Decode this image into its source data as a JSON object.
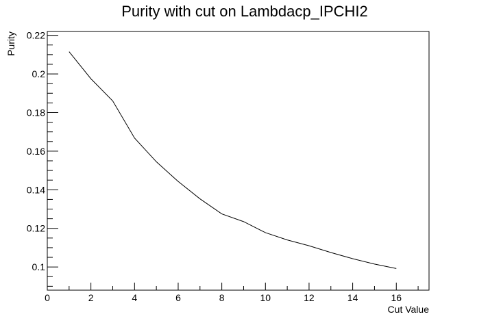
{
  "chart_data": {
    "type": "line",
    "title": "Purity with cut on Lambdacp_IPCHI2",
    "xlabel": "Cut Value",
    "ylabel": "Purity",
    "xlim": [
      0,
      17.5
    ],
    "ylim": [
      0.088,
      0.222
    ],
    "grid": false,
    "x_ticks": [
      "0",
      "2",
      "4",
      "6",
      "8",
      "10",
      "12",
      "14",
      "16"
    ],
    "y_ticks": [
      "0.1",
      "0.12",
      "0.14",
      "0.16",
      "0.18",
      "0.2",
      "0.22"
    ],
    "series": [
      {
        "x": [
          1,
          2,
          3,
          4,
          5,
          6,
          7,
          8,
          9,
          10,
          11,
          12,
          13,
          14,
          15,
          16
        ],
        "y": [
          0.2115,
          0.1975,
          0.186,
          0.1668,
          0.1545,
          0.1443,
          0.1353,
          0.1275,
          0.1235,
          0.1178,
          0.114,
          0.111,
          0.1075,
          0.1043,
          0.1015,
          0.0992
        ],
        "color": "#000000"
      }
    ]
  }
}
